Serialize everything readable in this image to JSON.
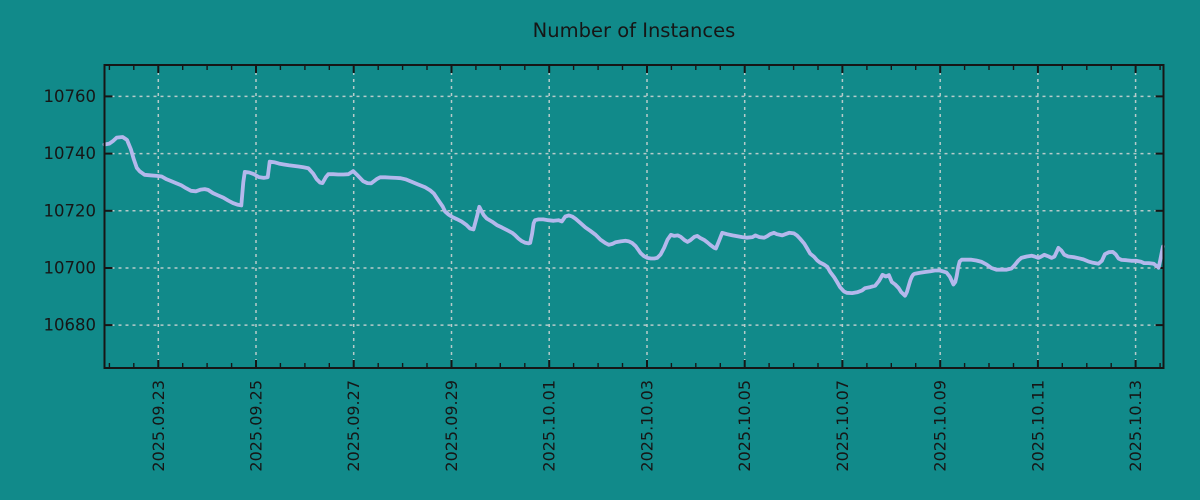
{
  "window": {
    "background_color": "#118a8a"
  },
  "chart_data": {
    "type": "line",
    "title": "Number of Instances",
    "xlabel": "",
    "ylabel": "",
    "legend": "none",
    "grid": true,
    "series_color": "#b4b8ec",
    "grid_color": "#b7cbca",
    "axis_color": "#161616",
    "background_color": "#118a8a",
    "x_unit": "days since 2025-09-21 00:00",
    "xlim": [
      0.9,
      22.57
    ],
    "ylim": [
      10665,
      10771
    ],
    "y_ticks": [
      10680,
      10700,
      10720,
      10740,
      10760
    ],
    "x_minor_step": 0.5,
    "x_ticks": [
      {
        "t": 2,
        "label": "2025.09.23"
      },
      {
        "t": 4,
        "label": "2025.09.25"
      },
      {
        "t": 6,
        "label": "2025.09.27"
      },
      {
        "t": 8,
        "label": "2025.09.29"
      },
      {
        "t": 10,
        "label": "2025.10.01"
      },
      {
        "t": 12,
        "label": "2025.10.03"
      },
      {
        "t": 14,
        "label": "2025.10.05"
      },
      {
        "t": 16,
        "label": "2025.10.07"
      },
      {
        "t": 18,
        "label": "2025.10.09"
      },
      {
        "t": 20,
        "label": "2025.10.11"
      },
      {
        "t": 22,
        "label": "2025.10.13"
      }
    ],
    "points": [
      [
        0.9,
        10743.2
      ],
      [
        1.0,
        10743.5
      ],
      [
        1.08,
        10744.5
      ],
      [
        1.15,
        10745.6
      ],
      [
        1.27,
        10745.8
      ],
      [
        1.36,
        10744.8
      ],
      [
        1.44,
        10741.5
      ],
      [
        1.5,
        10738.0
      ],
      [
        1.56,
        10735.0
      ],
      [
        1.62,
        10733.8
      ],
      [
        1.72,
        10732.6
      ],
      [
        1.83,
        10732.4
      ],
      [
        1.97,
        10732.2
      ],
      [
        2.07,
        10732.0
      ],
      [
        2.17,
        10731.0
      ],
      [
        2.27,
        10730.3
      ],
      [
        2.37,
        10729.6
      ],
      [
        2.47,
        10728.9
      ],
      [
        2.57,
        10727.9
      ],
      [
        2.67,
        10727.0
      ],
      [
        2.77,
        10726.8
      ],
      [
        2.87,
        10727.4
      ],
      [
        2.95,
        10727.6
      ],
      [
        3.02,
        10727.3
      ],
      [
        3.12,
        10726.2
      ],
      [
        3.22,
        10725.4
      ],
      [
        3.33,
        10724.6
      ],
      [
        3.43,
        10723.6
      ],
      [
        3.53,
        10722.7
      ],
      [
        3.63,
        10722.1
      ],
      [
        3.7,
        10721.9
      ],
      [
        3.74,
        10730.0
      ],
      [
        3.77,
        10733.6
      ],
      [
        3.86,
        10733.4
      ],
      [
        3.96,
        10732.8
      ],
      [
        4.06,
        10731.8
      ],
      [
        4.16,
        10731.5
      ],
      [
        4.24,
        10731.7
      ],
      [
        4.28,
        10737.2
      ],
      [
        4.37,
        10737.0
      ],
      [
        4.47,
        10736.5
      ],
      [
        4.57,
        10736.2
      ],
      [
        4.67,
        10735.9
      ],
      [
        4.77,
        10735.7
      ],
      [
        4.87,
        10735.5
      ],
      [
        4.97,
        10735.2
      ],
      [
        5.07,
        10734.9
      ],
      [
        5.17,
        10733.0
      ],
      [
        5.24,
        10731.1
      ],
      [
        5.31,
        10729.9
      ],
      [
        5.36,
        10729.7
      ],
      [
        5.43,
        10731.8
      ],
      [
        5.48,
        10732.8
      ],
      [
        5.58,
        10732.8
      ],
      [
        5.68,
        10732.7
      ],
      [
        5.79,
        10732.7
      ],
      [
        5.89,
        10732.8
      ],
      [
        5.99,
        10733.9
      ],
      [
        6.09,
        10732.2
      ],
      [
        6.19,
        10730.4
      ],
      [
        6.28,
        10729.7
      ],
      [
        6.36,
        10729.6
      ],
      [
        6.47,
        10731.1
      ],
      [
        6.54,
        10731.7
      ],
      [
        6.64,
        10731.7
      ],
      [
        6.75,
        10731.6
      ],
      [
        6.86,
        10731.5
      ],
      [
        6.96,
        10731.4
      ],
      [
        7.06,
        10731.0
      ],
      [
        7.19,
        10730.1
      ],
      [
        7.32,
        10729.2
      ],
      [
        7.46,
        10728.2
      ],
      [
        7.56,
        10727.2
      ],
      [
        7.64,
        10726.0
      ],
      [
        7.7,
        10724.5
      ],
      [
        7.76,
        10723.0
      ],
      [
        7.82,
        10721.5
      ],
      [
        7.87,
        10719.7
      ],
      [
        7.94,
        10718.7
      ],
      [
        8.01,
        10717.9
      ],
      [
        8.11,
        10717.1
      ],
      [
        8.21,
        10716.2
      ],
      [
        8.31,
        10715.0
      ],
      [
        8.38,
        10713.8
      ],
      [
        8.45,
        10713.5
      ],
      [
        8.52,
        10717.9
      ],
      [
        8.57,
        10721.4
      ],
      [
        8.62,
        10719.7
      ],
      [
        8.66,
        10718.5
      ],
      [
        8.72,
        10717.3
      ],
      [
        8.83,
        10716.2
      ],
      [
        8.93,
        10715.0
      ],
      [
        9.03,
        10714.2
      ],
      [
        9.13,
        10713.3
      ],
      [
        9.24,
        10712.3
      ],
      [
        9.3,
        10711.5
      ],
      [
        9.37,
        10710.3
      ],
      [
        9.44,
        10709.4
      ],
      [
        9.51,
        10708.8
      ],
      [
        9.58,
        10708.6
      ],
      [
        9.61,
        10708.8
      ],
      [
        9.65,
        10712.0
      ],
      [
        9.68,
        10715.6
      ],
      [
        9.71,
        10716.7
      ],
      [
        9.78,
        10717.0
      ],
      [
        9.88,
        10717.0
      ],
      [
        9.98,
        10716.7
      ],
      [
        10.09,
        10716.5
      ],
      [
        10.19,
        10716.7
      ],
      [
        10.26,
        10716.3
      ],
      [
        10.33,
        10718.0
      ],
      [
        10.4,
        10718.4
      ],
      [
        10.47,
        10718.0
      ],
      [
        10.54,
        10717.2
      ],
      [
        10.64,
        10715.7
      ],
      [
        10.74,
        10714.2
      ],
      [
        10.84,
        10713.0
      ],
      [
        10.95,
        10711.6
      ],
      [
        11.05,
        10709.9
      ],
      [
        11.15,
        10708.7
      ],
      [
        11.22,
        10708.1
      ],
      [
        11.29,
        10708.4
      ],
      [
        11.36,
        10709.0
      ],
      [
        11.46,
        10709.3
      ],
      [
        11.56,
        10709.5
      ],
      [
        11.63,
        10709.3
      ],
      [
        11.7,
        10708.7
      ],
      [
        11.77,
        10707.6
      ],
      [
        11.82,
        10706.4
      ],
      [
        11.87,
        10705.2
      ],
      [
        11.94,
        10704.1
      ],
      [
        12.01,
        10703.5
      ],
      [
        12.08,
        10703.3
      ],
      [
        12.15,
        10703.3
      ],
      [
        12.21,
        10703.5
      ],
      [
        12.28,
        10704.7
      ],
      [
        12.35,
        10707.0
      ],
      [
        12.42,
        10709.9
      ],
      [
        12.49,
        10711.6
      ],
      [
        12.56,
        10711.2
      ],
      [
        12.63,
        10711.4
      ],
      [
        12.69,
        10710.9
      ],
      [
        12.77,
        10709.7
      ],
      [
        12.83,
        10709.1
      ],
      [
        12.89,
        10709.7
      ],
      [
        12.97,
        10710.9
      ],
      [
        13.03,
        10711.2
      ],
      [
        13.09,
        10710.5
      ],
      [
        13.18,
        10709.7
      ],
      [
        13.24,
        10708.9
      ],
      [
        13.3,
        10708.0
      ],
      [
        13.38,
        10707.0
      ],
      [
        13.41,
        10706.8
      ],
      [
        13.48,
        10709.7
      ],
      [
        13.54,
        10712.3
      ],
      [
        13.64,
        10711.8
      ],
      [
        13.75,
        10711.4
      ],
      [
        13.85,
        10711.1
      ],
      [
        13.95,
        10710.8
      ],
      [
        14.05,
        10710.6
      ],
      [
        14.16,
        10710.8
      ],
      [
        14.22,
        10711.4
      ],
      [
        14.3,
        10710.8
      ],
      [
        14.4,
        10710.6
      ],
      [
        14.46,
        10711.1
      ],
      [
        14.52,
        10711.8
      ],
      [
        14.6,
        10712.3
      ],
      [
        14.66,
        10711.8
      ],
      [
        14.77,
        10711.4
      ],
      [
        14.83,
        10711.8
      ],
      [
        14.91,
        10712.3
      ],
      [
        15.01,
        10712.1
      ],
      [
        15.07,
        10711.4
      ],
      [
        15.13,
        10710.3
      ],
      [
        15.22,
        10708.5
      ],
      [
        15.28,
        10706.8
      ],
      [
        15.34,
        10705.0
      ],
      [
        15.42,
        10703.9
      ],
      [
        15.48,
        10702.7
      ],
      [
        15.54,
        10701.9
      ],
      [
        15.62,
        10701.2
      ],
      [
        15.69,
        10700.4
      ],
      [
        15.75,
        10698.6
      ],
      [
        15.83,
        10696.8
      ],
      [
        15.89,
        10695.1
      ],
      [
        15.95,
        10693.3
      ],
      [
        16.03,
        10691.8
      ],
      [
        16.09,
        10691.3
      ],
      [
        16.2,
        10691.2
      ],
      [
        16.3,
        10691.5
      ],
      [
        16.4,
        10692.1
      ],
      [
        16.46,
        10692.9
      ],
      [
        16.57,
        10693.3
      ],
      [
        16.67,
        10693.8
      ],
      [
        16.75,
        10695.5
      ],
      [
        16.82,
        10697.6
      ],
      [
        16.89,
        10697.0
      ],
      [
        16.95,
        10697.5
      ],
      [
        17.01,
        10695.1
      ],
      [
        17.08,
        10694.2
      ],
      [
        17.15,
        10693.0
      ],
      [
        17.2,
        10691.6
      ],
      [
        17.28,
        10690.3
      ],
      [
        17.32,
        10691.6
      ],
      [
        17.36,
        10694.0
      ],
      [
        17.39,
        10695.7
      ],
      [
        17.42,
        10696.9
      ],
      [
        17.45,
        10697.7
      ],
      [
        17.48,
        10698.0
      ],
      [
        17.59,
        10698.3
      ],
      [
        17.69,
        10698.6
      ],
      [
        17.79,
        10698.8
      ],
      [
        17.89,
        10699.1
      ],
      [
        17.99,
        10699.1
      ],
      [
        18.06,
        10698.8
      ],
      [
        18.13,
        10698.4
      ],
      [
        18.2,
        10696.9
      ],
      [
        18.27,
        10694.2
      ],
      [
        18.31,
        10695.1
      ],
      [
        18.34,
        10697.4
      ],
      [
        18.37,
        10700.3
      ],
      [
        18.4,
        10702.3
      ],
      [
        18.44,
        10702.9
      ],
      [
        18.54,
        10702.9
      ],
      [
        18.64,
        10702.9
      ],
      [
        18.74,
        10702.6
      ],
      [
        18.85,
        10702.1
      ],
      [
        18.95,
        10701.2
      ],
      [
        19.05,
        10700.0
      ],
      [
        19.15,
        10699.4
      ],
      [
        19.26,
        10699.4
      ],
      [
        19.36,
        10699.4
      ],
      [
        19.46,
        10699.8
      ],
      [
        19.52,
        10700.9
      ],
      [
        19.6,
        10702.6
      ],
      [
        19.66,
        10703.5
      ],
      [
        19.77,
        10704.0
      ],
      [
        19.87,
        10704.3
      ],
      [
        19.93,
        10704.0
      ],
      [
        20.01,
        10703.5
      ],
      [
        20.07,
        10704.0
      ],
      [
        20.13,
        10704.6
      ],
      [
        20.22,
        10704.0
      ],
      [
        20.28,
        10703.5
      ],
      [
        20.34,
        10704.0
      ],
      [
        20.38,
        10705.5
      ],
      [
        20.42,
        10707.0
      ],
      [
        20.48,
        10706.1
      ],
      [
        20.54,
        10704.6
      ],
      [
        20.62,
        10704.0
      ],
      [
        20.73,
        10703.8
      ],
      [
        20.83,
        10703.4
      ],
      [
        20.93,
        10703.0
      ],
      [
        21.03,
        10702.3
      ],
      [
        21.13,
        10701.8
      ],
      [
        21.24,
        10701.5
      ],
      [
        21.31,
        10702.5
      ],
      [
        21.37,
        10704.8
      ],
      [
        21.45,
        10705.5
      ],
      [
        21.53,
        10705.6
      ],
      [
        21.59,
        10704.8
      ],
      [
        21.65,
        10703.3
      ],
      [
        21.71,
        10702.8
      ],
      [
        21.81,
        10702.7
      ],
      [
        21.91,
        10702.5
      ],
      [
        22.01,
        10702.5
      ],
      [
        22.11,
        10702.2
      ],
      [
        22.17,
        10701.7
      ],
      [
        22.27,
        10701.7
      ],
      [
        22.37,
        10701.5
      ],
      [
        22.43,
        10700.6
      ],
      [
        22.47,
        10700.1
      ],
      [
        22.5,
        10702.5
      ],
      [
        22.53,
        10705.0
      ],
      [
        22.56,
        10707.5
      ]
    ]
  }
}
